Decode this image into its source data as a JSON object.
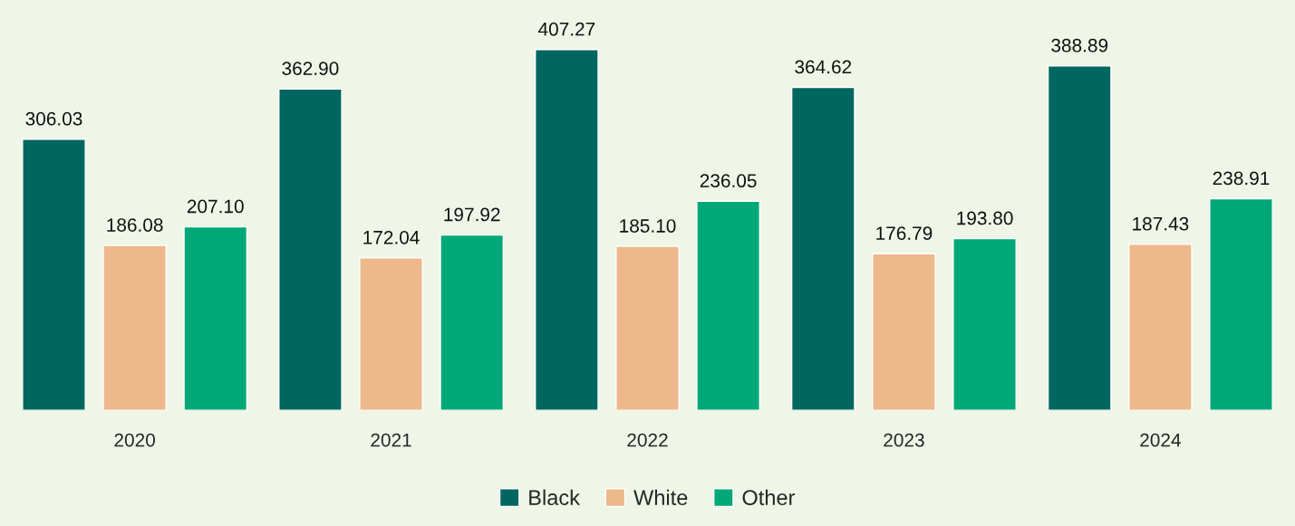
{
  "chart_data": {
    "type": "bar",
    "categories": [
      "2020",
      "2021",
      "2022",
      "2023",
      "2024"
    ],
    "series": [
      {
        "name": "Black",
        "color": "#006660",
        "values": [
          306.03,
          362.9,
          407.27,
          364.62,
          388.89
        ],
        "value_labels": [
          "306.03",
          "362.90",
          "407.27",
          "364.62",
          "388.89"
        ]
      },
      {
        "name": "White",
        "color": "#edb88b",
        "values": [
          186.08,
          172.04,
          185.1,
          176.79,
          187.43
        ],
        "value_labels": [
          "186.08",
          "172.04",
          "185.10",
          "176.79",
          "187.43"
        ]
      },
      {
        "name": "Other",
        "color": "#00a877",
        "values": [
          207.1,
          197.92,
          236.05,
          193.8,
          238.91
        ],
        "value_labels": [
          "207.10",
          "197.92",
          "236.05",
          "193.80",
          "238.91"
        ]
      }
    ],
    "legend": "bottom",
    "grid": false,
    "tick_labels": "x"
  }
}
